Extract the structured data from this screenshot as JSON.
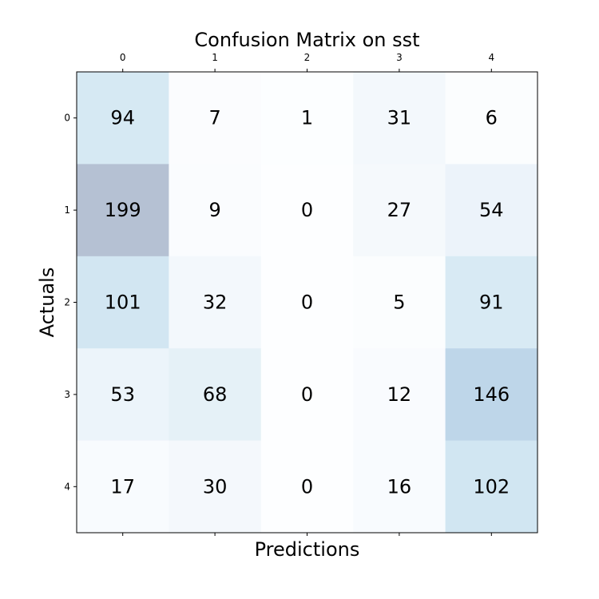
{
  "chart_data": {
    "type": "heatmap",
    "title": "Confusion Matrix on sst",
    "xlabel": "Predictions",
    "ylabel": "Actuals",
    "x_categories": [
      "0",
      "1",
      "2",
      "3",
      "4"
    ],
    "y_categories": [
      "0",
      "1",
      "2",
      "3",
      "4"
    ],
    "values": [
      [
        94,
        7,
        1,
        31,
        6
      ],
      [
        199,
        9,
        0,
        27,
        54
      ],
      [
        101,
        32,
        0,
        5,
        91
      ],
      [
        53,
        68,
        0,
        12,
        146
      ],
      [
        17,
        30,
        0,
        16,
        102
      ]
    ],
    "colormap": "Blues",
    "grid": false
  }
}
